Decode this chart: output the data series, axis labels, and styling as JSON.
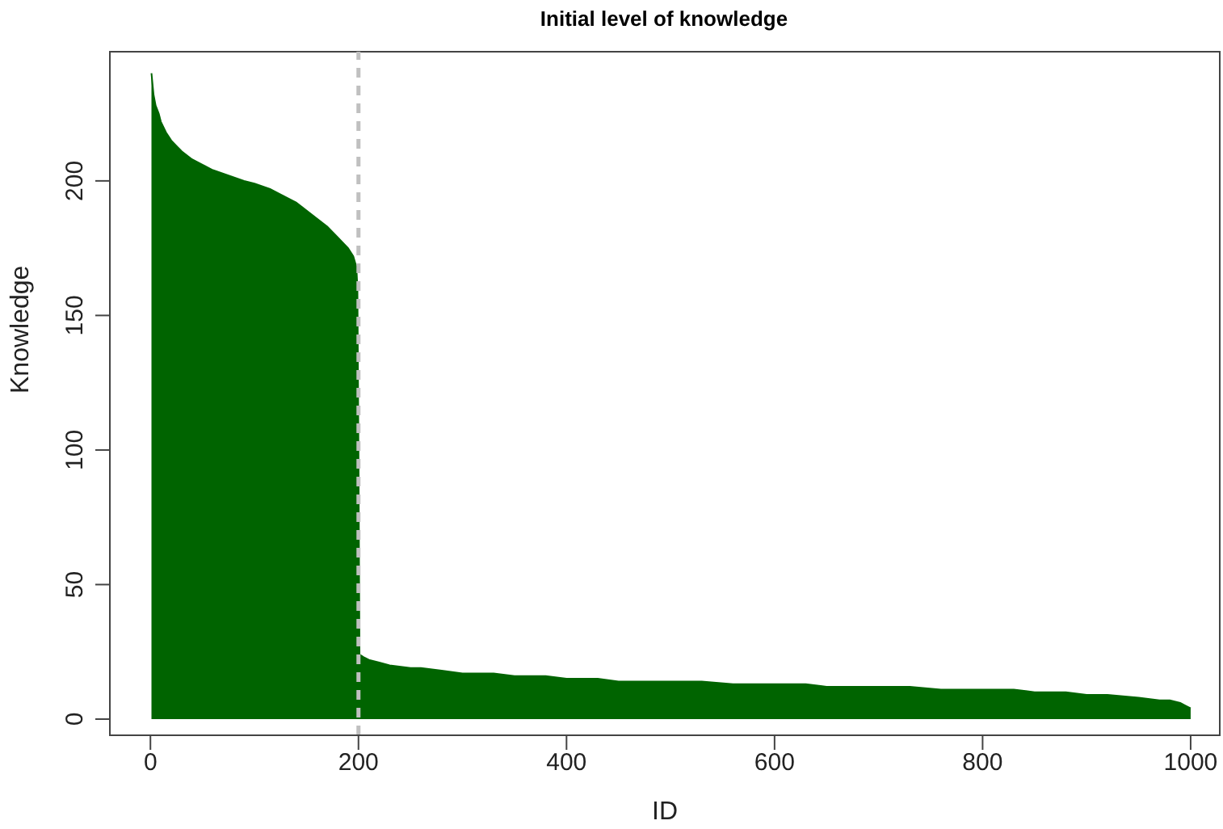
{
  "chart_data": {
    "type": "area",
    "title": "Initial level of knowledge",
    "xlabel": "ID",
    "ylabel": "Knowledge",
    "x": [
      1,
      3,
      5,
      8,
      10,
      15,
      20,
      25,
      30,
      40,
      50,
      60,
      75,
      90,
      100,
      115,
      125,
      140,
      150,
      160,
      170,
      180,
      185,
      190,
      195,
      198,
      199,
      200,
      201,
      205,
      210,
      220,
      230,
      250,
      260,
      280,
      300,
      330,
      350,
      380,
      400,
      430,
      450,
      480,
      500,
      530,
      560,
      580,
      600,
      630,
      650,
      680,
      700,
      730,
      760,
      780,
      800,
      830,
      850,
      880,
      900,
      920,
      950,
      970,
      980,
      990,
      995,
      1000
    ],
    "series": [
      {
        "color": "#006400",
        "values": [
          240,
          232,
          228,
          225,
          222,
          218,
          215,
          213,
          211,
          208,
          206,
          204,
          202,
          200,
          199,
          197,
          195,
          192,
          189,
          186,
          183,
          179,
          177,
          175,
          172,
          168,
          160,
          100,
          24,
          23,
          22,
          21,
          20,
          19,
          19,
          18,
          17,
          17,
          16,
          16,
          15,
          15,
          14,
          14,
          14,
          14,
          13,
          13,
          13,
          13,
          12,
          12,
          12,
          12,
          11,
          11,
          11,
          11,
          10,
          10,
          9,
          9,
          8,
          7,
          7,
          6,
          5,
          4
        ]
      }
    ],
    "xlim": [
      -39,
      1028
    ],
    "ylim": [
      -6,
      248
    ],
    "xticks": [
      0,
      200,
      400,
      600,
      800,
      1000
    ],
    "yticks": [
      0,
      50,
      100,
      150,
      200
    ],
    "ref_lines": [
      {
        "axis": "x",
        "value": 200,
        "color": "#c0c0c0",
        "line_style": "dashed"
      }
    ],
    "grid": false
  }
}
